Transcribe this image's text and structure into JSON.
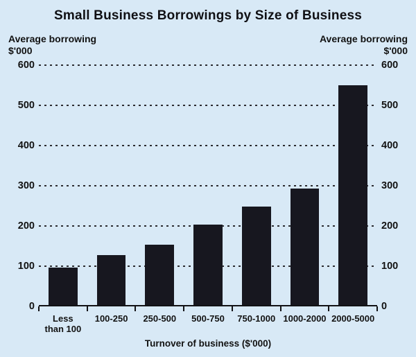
{
  "axis_headers": {
    "left": {
      "line1": "Average borrowing",
      "line2": "$'000"
    },
    "right": {
      "line1": "Average borrowing",
      "line2": "$'000"
    }
  },
  "chart_data": {
    "type": "bar",
    "title": "Small Business Borrowings by Size of Business",
    "categories": [
      "Less\nthan 100",
      "100-250",
      "250-500",
      "500-750",
      "750-1000",
      "1000-2000",
      "2000-5000"
    ],
    "values": [
      97,
      128,
      153,
      203,
      248,
      293,
      550
    ],
    "xlabel": "Turnover of business ($'000)",
    "ylabel_left": "Average borrowing $'000",
    "ylabel_right": "Average borrowing $'000",
    "ylim": [
      0,
      600
    ],
    "yticks": [
      0,
      100,
      200,
      300,
      400,
      500,
      600
    ],
    "grid": "dotted-horizontal",
    "legend": "none",
    "bar_color": "#17171f",
    "background_color": "#d8e9f6",
    "text_color": "#121212"
  }
}
